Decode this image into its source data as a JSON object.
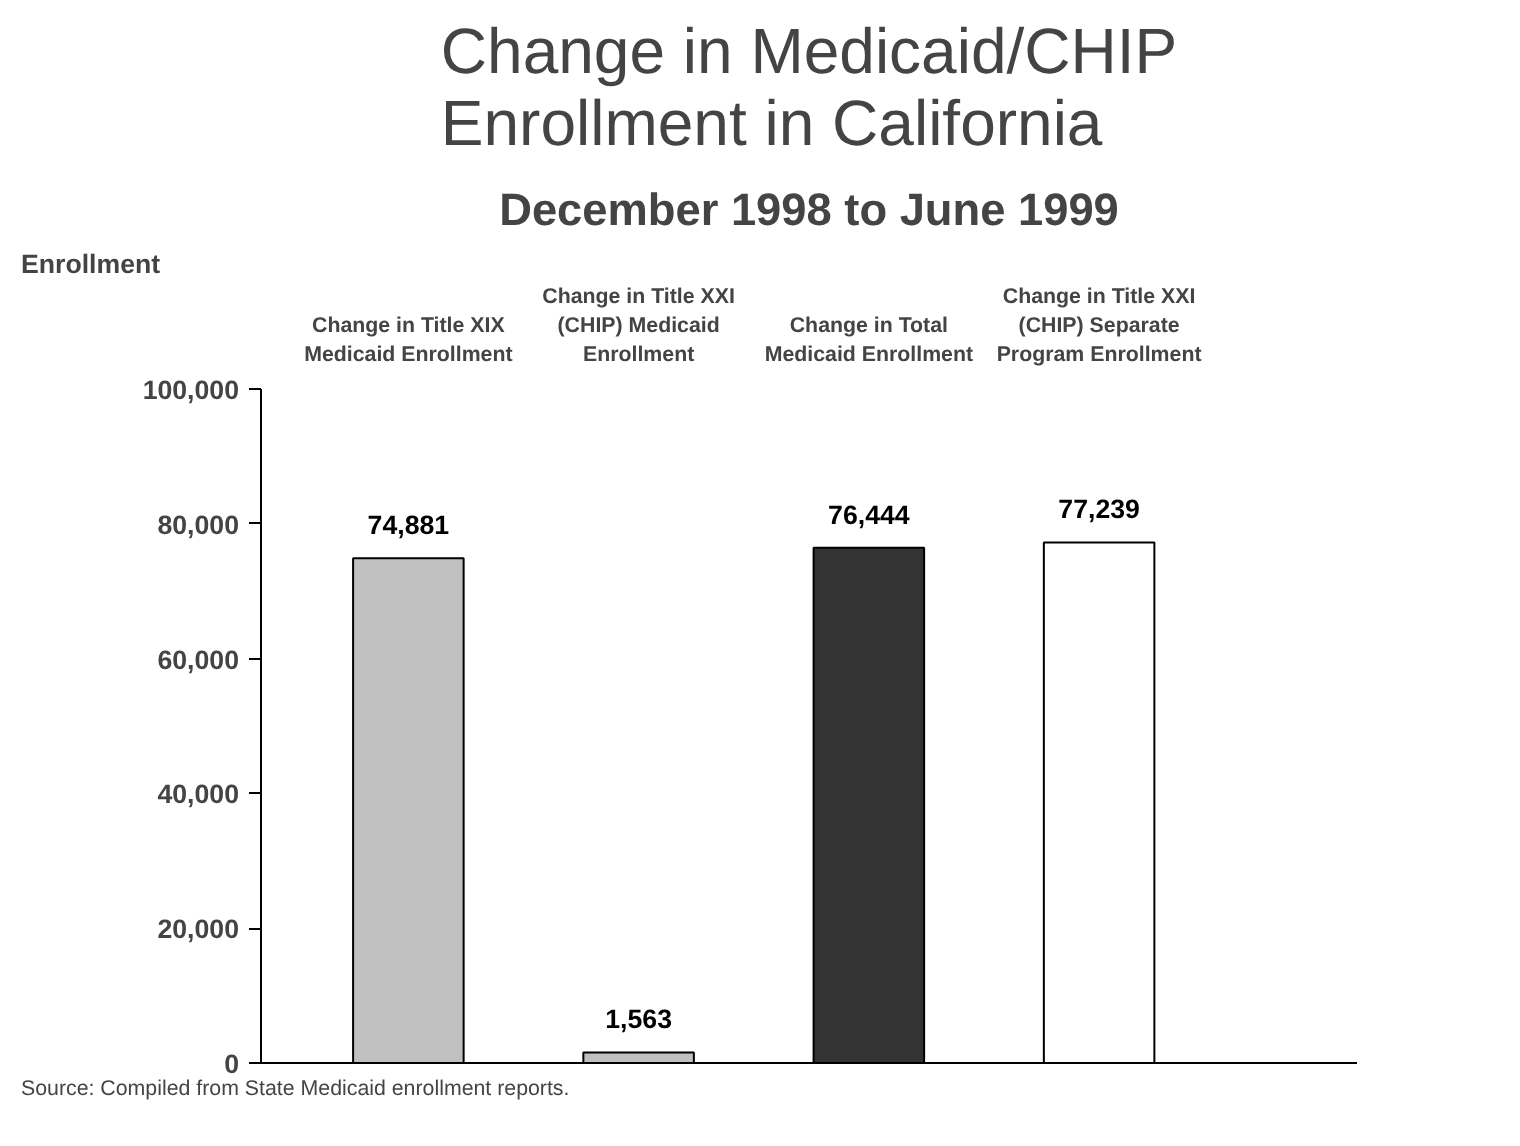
{
  "chart_data": {
    "type": "bar",
    "title": "Change in Medicaid/CHIP Enrollment in California",
    "subtitle": "December 1998 to June 1999",
    "ylabel": "Enrollment",
    "categories": [
      "Change in Title XIX Medicaid Enrollment",
      "Change in Title XXI (CHIP) Medicaid Enrollment",
      "Change in Total Medicaid Enrollment",
      "Change in Title XXI (CHIP) Separate Program Enrollment"
    ],
    "values": [
      74881,
      1563,
      76444,
      77239
    ],
    "colors": [
      "#c0c0c0",
      "#c0c0c0",
      "#333333",
      "#ffffff"
    ],
    "value_labels": [
      "74,881",
      "1,563",
      "76,444",
      "77,239"
    ],
    "ylim": [
      0,
      100000
    ],
    "yticks": [
      {
        "value": 0,
        "label": "0"
      },
      {
        "value": 20000,
        "label": "20,000"
      },
      {
        "value": 40000,
        "label": "40,000"
      },
      {
        "value": 60000,
        "label": "60,000"
      },
      {
        "value": 80000,
        "label": "80,000"
      },
      {
        "value": 100000,
        "label": "100,000"
      }
    ],
    "grid": false,
    "annotations": [
      "Source: Compiled from State Medicaid enrollment reports."
    ]
  }
}
